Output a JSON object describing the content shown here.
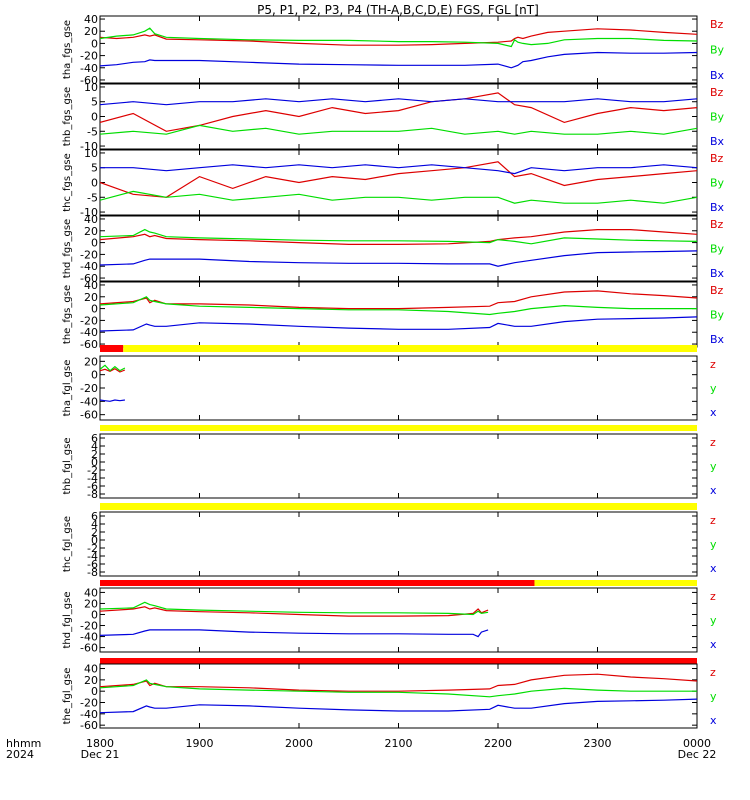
{
  "title": "P5, P1, P2, P3, P4 (TH-A,B,C,D,E) FGS, FGL [nT]",
  "colors": {
    "x": "#0000dd",
    "y": "#00dd00",
    "z": "#dd0000",
    "axis": "#000000",
    "bar_red": "#ff0000",
    "bar_yellow": "#ffff00"
  },
  "x_axis": {
    "time_label": "hhmm",
    "date_label": "Dec 21",
    "year_label": "2024",
    "ticks": [
      {
        "t": 0,
        "label": "1800",
        "sub": "Dec 21"
      },
      {
        "t": 60,
        "label": "1900",
        "sub": ""
      },
      {
        "t": 120,
        "label": "2000",
        "sub": ""
      },
      {
        "t": 180,
        "label": "2100",
        "sub": ""
      },
      {
        "t": 240,
        "label": "2200",
        "sub": ""
      },
      {
        "t": 300,
        "label": "2300",
        "sub": ""
      },
      {
        "t": 360,
        "label": "0000",
        "sub": "Dec 22"
      }
    ],
    "range_minutes": [
      0,
      360
    ]
  },
  "chart_data": [
    {
      "type": "line",
      "ylabel": "tha_fgs_gse",
      "ylim": [
        -65,
        45
      ],
      "yticks": [
        40,
        20,
        0,
        -20,
        -40,
        -60
      ],
      "legend": [
        "Bz",
        "By",
        "Bx"
      ],
      "x_minutes": [
        0,
        10,
        20,
        27,
        30,
        33,
        40,
        60,
        90,
        120,
        150,
        180,
        200,
        220,
        240,
        248,
        250,
        252,
        255,
        260,
        270,
        280,
        300,
        320,
        340,
        360
      ],
      "series": [
        {
          "name": "Bz",
          "key": "z",
          "values": [
            10,
            8,
            10,
            14,
            12,
            14,
            7,
            6,
            4,
            0,
            -3,
            -3,
            -2,
            0,
            2,
            4,
            8,
            10,
            8,
            12,
            18,
            20,
            24,
            22,
            18,
            15
          ]
        },
        {
          "name": "By",
          "key": "y",
          "values": [
            8,
            12,
            14,
            20,
            25,
            16,
            10,
            8,
            6,
            5,
            5,
            3,
            3,
            2,
            0,
            -5,
            6,
            2,
            0,
            -2,
            0,
            6,
            8,
            8,
            5,
            4
          ]
        },
        {
          "name": "Bx",
          "key": "x",
          "values": [
            -37,
            -35,
            -31,
            -30,
            -27,
            -28,
            -28,
            -28,
            -31,
            -34,
            -35,
            -36,
            -36,
            -36,
            -34,
            -40,
            -38,
            -36,
            -30,
            -28,
            -22,
            -18,
            -15,
            -16,
            -16,
            -15
          ]
        }
      ]
    },
    {
      "type": "line",
      "ylabel": "thb_fgs_gse",
      "ylim": [
        -11,
        11
      ],
      "yticks": [
        10,
        5,
        0,
        -5,
        -10
      ],
      "legend": [
        "Bz",
        "By",
        "Bx"
      ],
      "x_minutes": [
        0,
        20,
        40,
        60,
        80,
        100,
        120,
        140,
        160,
        180,
        200,
        220,
        240,
        250,
        260,
        280,
        300,
        320,
        340,
        360
      ],
      "series": [
        {
          "name": "Bz",
          "key": "z",
          "values": [
            -2,
            1,
            -5,
            -3,
            0,
            2,
            0,
            3,
            1,
            2,
            5,
            6,
            8,
            4,
            3,
            -2,
            1,
            3,
            2,
            3
          ]
        },
        {
          "name": "By",
          "key": "y",
          "values": [
            -6,
            -5,
            -6,
            -3,
            -5,
            -4,
            -6,
            -5,
            -5,
            -5,
            -4,
            -6,
            -5,
            -6,
            -5,
            -6,
            -6,
            -5,
            -6,
            -4
          ]
        },
        {
          "name": "Bx",
          "key": "x",
          "values": [
            4,
            5,
            4,
            5,
            5,
            6,
            5,
            6,
            5,
            6,
            5,
            6,
            5,
            5,
            5,
            5,
            6,
            5,
            5,
            6
          ]
        }
      ]
    },
    {
      "type": "line",
      "ylabel": "thc_fgs_gse",
      "ylim": [
        -11,
        11
      ],
      "yticks": [
        10,
        5,
        0,
        -5,
        -10
      ],
      "legend": [
        "Bz",
        "By",
        "Bx"
      ],
      "x_minutes": [
        0,
        20,
        40,
        60,
        80,
        100,
        120,
        140,
        160,
        180,
        200,
        220,
        240,
        250,
        260,
        280,
        300,
        320,
        340,
        360
      ],
      "series": [
        {
          "name": "Bz",
          "key": "z",
          "values": [
            0,
            -4,
            -5,
            2,
            -2,
            2,
            0,
            2,
            1,
            3,
            4,
            5,
            7,
            2,
            3,
            -1,
            1,
            2,
            3,
            4
          ]
        },
        {
          "name": "By",
          "key": "y",
          "values": [
            -6,
            -3,
            -5,
            -4,
            -6,
            -5,
            -4,
            -6,
            -5,
            -5,
            -6,
            -5,
            -5,
            -7,
            -6,
            -7,
            -7,
            -6,
            -7,
            -5
          ]
        },
        {
          "name": "Bx",
          "key": "x",
          "values": [
            5,
            5,
            4,
            5,
            6,
            5,
            6,
            5,
            6,
            5,
            6,
            5,
            4,
            3,
            5,
            4,
            5,
            5,
            6,
            5
          ]
        }
      ]
    },
    {
      "type": "line",
      "ylabel": "thd_fgs_gse",
      "ylim": [
        -65,
        45
      ],
      "yticks": [
        40,
        20,
        0,
        -20,
        -40,
        -60
      ],
      "legend": [
        "Bz",
        "By",
        "Bx"
      ],
      "x_minutes": [
        0,
        20,
        27,
        30,
        33,
        40,
        60,
        90,
        120,
        150,
        180,
        210,
        235,
        240,
        250,
        260,
        280,
        300,
        320,
        340,
        360
      ],
      "series": [
        {
          "name": "Bz",
          "key": "z",
          "values": [
            5,
            10,
            14,
            10,
            12,
            7,
            5,
            3,
            0,
            -3,
            -3,
            -2,
            2,
            5,
            8,
            10,
            18,
            22,
            22,
            18,
            14
          ]
        },
        {
          "name": "By",
          "key": "y",
          "values": [
            10,
            12,
            22,
            18,
            16,
            10,
            8,
            6,
            4,
            3,
            3,
            2,
            0,
            5,
            2,
            -2,
            8,
            6,
            4,
            3,
            2
          ]
        },
        {
          "name": "Bx",
          "key": "x",
          "values": [
            -38,
            -36,
            -30,
            -28,
            -28,
            -28,
            -28,
            -32,
            -34,
            -35,
            -35,
            -36,
            -36,
            -40,
            -34,
            -30,
            -22,
            -17,
            -16,
            -15,
            -14
          ]
        }
      ]
    },
    {
      "type": "line",
      "ylabel": "the_fgs_gse",
      "ylim": [
        -65,
        45
      ],
      "yticks": [
        40,
        20,
        0,
        -20,
        -40,
        -60
      ],
      "legend": [
        "Bz",
        "By",
        "Bx"
      ],
      "x_minutes": [
        0,
        20,
        28,
        30,
        33,
        40,
        60,
        90,
        120,
        150,
        180,
        210,
        235,
        240,
        250,
        260,
        280,
        300,
        320,
        340,
        360
      ],
      "series": [
        {
          "name": "Bz",
          "key": "z",
          "values": [
            8,
            12,
            18,
            10,
            14,
            8,
            8,
            6,
            2,
            0,
            0,
            2,
            4,
            10,
            12,
            20,
            28,
            30,
            25,
            22,
            18
          ]
        },
        {
          "name": "By",
          "key": "y",
          "values": [
            6,
            10,
            20,
            14,
            12,
            8,
            4,
            2,
            0,
            -2,
            -2,
            -5,
            -10,
            -8,
            -5,
            0,
            5,
            2,
            0,
            0,
            0
          ]
        },
        {
          "name": "Bx",
          "key": "x",
          "values": [
            -38,
            -36,
            -26,
            -28,
            -30,
            -30,
            -24,
            -26,
            -30,
            -33,
            -35,
            -35,
            -32,
            -25,
            -30,
            -30,
            -22,
            -18,
            -17,
            -16,
            -14
          ]
        }
      ]
    },
    {
      "type": "line",
      "ylabel": "tha_fgl_gse",
      "ylim": [
        -68,
        28
      ],
      "yticks": [
        20,
        0,
        -20,
        -40,
        -60
      ],
      "legend": [
        "z",
        "y",
        "x"
      ],
      "bars": [
        {
          "from": 0,
          "to": 14,
          "color": "red"
        },
        {
          "from": 14,
          "to": 360,
          "color": "yellow"
        }
      ],
      "x_minutes": [
        0,
        3,
        6,
        9,
        12,
        15
      ],
      "series": [
        {
          "name": "z",
          "key": "z",
          "values": [
            6,
            8,
            5,
            9,
            4,
            7
          ]
        },
        {
          "name": "y",
          "key": "y",
          "values": [
            8,
            14,
            6,
            12,
            6,
            10
          ]
        },
        {
          "name": "x",
          "key": "x",
          "values": [
            -38,
            -39,
            -40,
            -38,
            -39,
            -38
          ]
        }
      ]
    },
    {
      "type": "line",
      "ylabel": "thb_fgl_gse",
      "ylim": [
        -9,
        7
      ],
      "yticks": [
        6,
        4,
        2,
        0,
        -2,
        -4,
        -6,
        -8
      ],
      "legend": [
        "z",
        "y",
        "x"
      ],
      "bars": [
        {
          "from": 0,
          "to": 360,
          "color": "yellow"
        }
      ],
      "x_minutes": [],
      "series": []
    },
    {
      "type": "line",
      "ylabel": "thc_fgl_gse",
      "ylim": [
        -9,
        7
      ],
      "yticks": [
        6,
        4,
        2,
        0,
        -2,
        -4,
        -6,
        -8
      ],
      "legend": [
        "z",
        "y",
        "x"
      ],
      "bars": [
        {
          "from": 0,
          "to": 360,
          "color": "yellow"
        }
      ],
      "x_minutes": [],
      "series": []
    },
    {
      "type": "line",
      "ylabel": "thd_fgl_gse",
      "ylim": [
        -68,
        48
      ],
      "yticks": [
        40,
        20,
        0,
        -20,
        -40,
        -60
      ],
      "legend": [
        "z",
        "y",
        "x"
      ],
      "bars": [
        {
          "from": 0,
          "to": 262,
          "color": "red"
        },
        {
          "from": 262,
          "to": 360,
          "color": "yellow"
        }
      ],
      "x_minutes": [
        0,
        20,
        27,
        30,
        33,
        40,
        60,
        90,
        120,
        150,
        180,
        210,
        225,
        228,
        230,
        234
      ],
      "series": [
        {
          "name": "z",
          "key": "z",
          "values": [
            6,
            10,
            14,
            10,
            12,
            7,
            5,
            3,
            0,
            -3,
            -3,
            -2,
            2,
            10,
            3,
            8
          ]
        },
        {
          "name": "y",
          "key": "y",
          "values": [
            10,
            12,
            22,
            18,
            16,
            10,
            8,
            6,
            4,
            3,
            3,
            2,
            0,
            6,
            2,
            4
          ]
        },
        {
          "name": "x",
          "key": "x",
          "values": [
            -38,
            -36,
            -30,
            -28,
            -28,
            -28,
            -28,
            -32,
            -34,
            -35,
            -35,
            -36,
            -36,
            -40,
            -32,
            -28
          ]
        }
      ]
    },
    {
      "type": "line",
      "ylabel": "the_fgl_gse",
      "ylim": [
        -65,
        48
      ],
      "yticks": [
        40,
        20,
        0,
        -20,
        -40,
        -60
      ],
      "legend": [
        "z",
        "y",
        "x"
      ],
      "bars": [
        {
          "from": 0,
          "to": 360,
          "color": "red"
        }
      ],
      "x_minutes": [
        0,
        20,
        28,
        30,
        33,
        40,
        60,
        90,
        120,
        150,
        180,
        210,
        235,
        240,
        250,
        260,
        280,
        300,
        320,
        340,
        360
      ],
      "series": [
        {
          "name": "z",
          "key": "z",
          "values": [
            8,
            12,
            18,
            10,
            14,
            8,
            8,
            6,
            2,
            0,
            0,
            2,
            4,
            10,
            12,
            20,
            28,
            30,
            25,
            22,
            18
          ]
        },
        {
          "name": "y",
          "key": "y",
          "values": [
            6,
            10,
            20,
            14,
            12,
            8,
            4,
            2,
            0,
            -2,
            -2,
            -5,
            -10,
            -8,
            -5,
            0,
            5,
            2,
            0,
            0,
            0
          ]
        },
        {
          "name": "x",
          "key": "x",
          "values": [
            -38,
            -36,
            -26,
            -28,
            -30,
            -30,
            -24,
            -26,
            -30,
            -33,
            -35,
            -35,
            -32,
            -25,
            -30,
            -30,
            -22,
            -18,
            -17,
            -16,
            -14
          ]
        }
      ]
    }
  ]
}
